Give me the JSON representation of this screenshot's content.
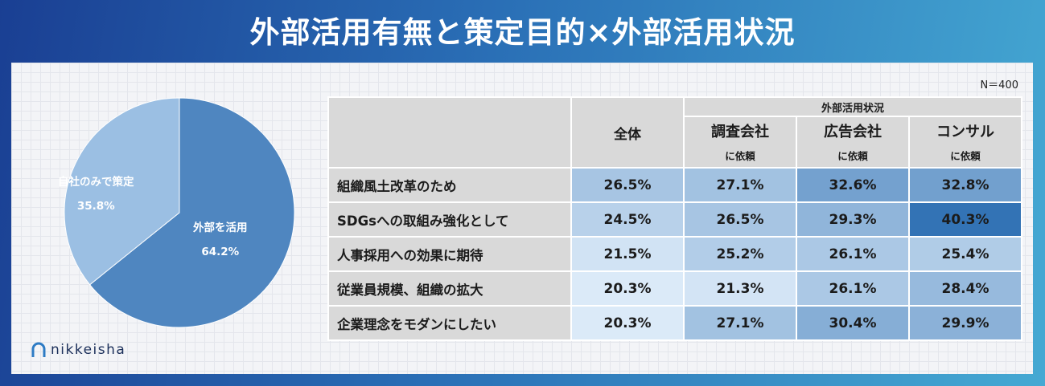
{
  "title": "外部活用有無と策定目的×外部活用状況",
  "sample_note": "N＝400",
  "logo_text": "nikkeisha",
  "chart_data": [
    {
      "type": "pie",
      "slices": [
        {
          "label": "外部を活用",
          "value": 64.2,
          "value_label": "64.2%",
          "color": "#4f86c0"
        },
        {
          "label": "自社のみで策定",
          "value": 35.8,
          "value_label": "35.8%",
          "color": "#9bbfe3"
        }
      ]
    },
    {
      "type": "table",
      "group_header": "外部活用状況",
      "columns": [
        {
          "name": "全体",
          "sub": ""
        },
        {
          "name": "調査会社",
          "sub": "に依頼"
        },
        {
          "name": "広告会社",
          "sub": "に依頼"
        },
        {
          "name": "コンサル",
          "sub": "に依頼"
        }
      ],
      "rows": [
        {
          "label": "組織風土改革のため",
          "values": [
            26.5,
            27.1,
            32.6,
            32.8
          ],
          "texts": [
            "26.5%",
            "27.1%",
            "32.6%",
            "32.8%"
          ]
        },
        {
          "label": "SDGsへの取組み強化として",
          "values": [
            24.5,
            26.5,
            29.3,
            40.3
          ],
          "texts": [
            "24.5%",
            "26.5%",
            "29.3%",
            "40.3%"
          ]
        },
        {
          "label": "人事採用への効果に期待",
          "values": [
            21.5,
            25.2,
            26.1,
            25.4
          ],
          "texts": [
            "21.5%",
            "25.2%",
            "26.1%",
            "25.4%"
          ]
        },
        {
          "label": "従業員規模、組織の拡大",
          "values": [
            20.3,
            21.3,
            26.1,
            28.4
          ],
          "texts": [
            "20.3%",
            "21.3%",
            "26.1%",
            "28.4%"
          ]
        },
        {
          "label": "企業理念をモダンにしたい",
          "values": [
            20.3,
            27.1,
            30.4,
            29.9
          ],
          "texts": [
            "20.3%",
            "27.1%",
            "30.4%",
            "29.9%"
          ]
        }
      ]
    }
  ]
}
